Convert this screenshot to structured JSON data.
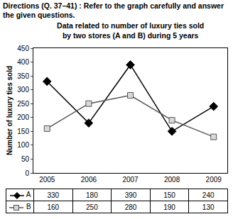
{
  "chart_data": {
    "type": "line",
    "annotations": [
      "Directions (Q. 37–41) : Refer to the graph carefully and answer the given questions."
    ],
    "title": "Data related to number of luxury ties sold\nby two stores (A and B) during 5 years",
    "y_label": "Number of luxury ties sold",
    "categories": [
      "2005",
      "2006",
      "2007",
      "2008",
      "2009"
    ],
    "series": [
      {
        "name": "A",
        "color": "#000000",
        "marker": "diamond",
        "values": [
          330,
          180,
          390,
          150,
          240
        ]
      },
      {
        "name": "B",
        "color": "#555555",
        "marker": "square",
        "values": [
          160,
          250,
          280,
          190,
          130
        ]
      }
    ],
    "ylim": [
      0,
      450
    ],
    "yticks": [
      0,
      50,
      100,
      150,
      200,
      250,
      300,
      350,
      400,
      450
    ],
    "grid": false
  }
}
